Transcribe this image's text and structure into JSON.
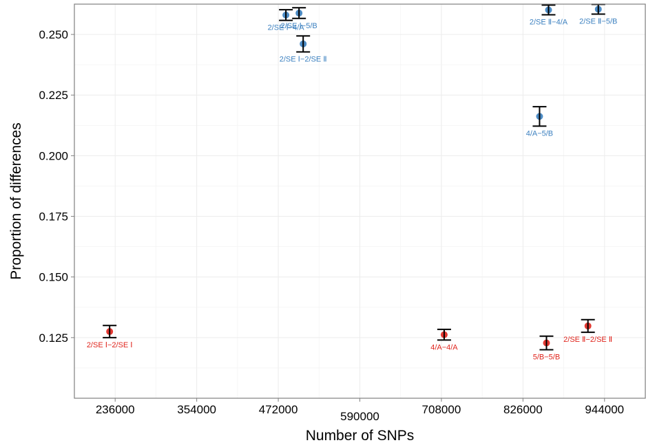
{
  "chart_data": {
    "type": "scatter",
    "xlabel": "Number of SNPs",
    "ylabel": "Proportion of differences",
    "xlim": [
      177000,
      1003000
    ],
    "ylim": [
      0.1,
      0.2625
    ],
    "x_ticks": [
      236000,
      354000,
      472000,
      590000,
      708000,
      826000,
      944000
    ],
    "x_tick_labels": [
      "236000",
      "354000",
      "472000",
      "590000",
      "708000",
      "826000",
      "944000"
    ],
    "y_ticks": [
      0.125,
      0.15,
      0.175,
      0.2,
      0.225,
      0.25
    ],
    "y_tick_labels": [
      "0.125",
      "0.150",
      "0.175",
      "0.200",
      "0.225",
      "0.250"
    ],
    "grid": true,
    "legend": "none",
    "colors": {
      "blue": "#3a7fbf",
      "red": "#e0241c",
      "errorbar": "#000000",
      "panel_border": "#7f7f7f",
      "grid": "#ececec"
    },
    "series": [
      {
        "color": "blue",
        "points": [
          {
            "x": 483000,
            "y": 0.258,
            "lo": 0.2558,
            "hi": 0.2602,
            "label": "2/SE Ⅰ−4/A"
          },
          {
            "x": 502000,
            "y": 0.2588,
            "lo": 0.2566,
            "hi": 0.261,
            "label": "2/SE Ⅰ−5/B"
          },
          {
            "x": 508000,
            "y": 0.2461,
            "lo": 0.2428,
            "hi": 0.2494,
            "label": "2/SE Ⅰ−2/SE Ⅱ"
          },
          {
            "x": 850000,
            "y": 0.2162,
            "lo": 0.2122,
            "hi": 0.2202,
            "label": "4/A−5/B"
          },
          {
            "x": 863000,
            "y": 0.2601,
            "lo": 0.2581,
            "hi": 0.2621,
            "label": "2/SE Ⅱ−4/A"
          },
          {
            "x": 935000,
            "y": 0.2604,
            "lo": 0.2584,
            "hi": 0.2624,
            "label": "2/SE Ⅱ−5/B"
          }
        ]
      },
      {
        "color": "red",
        "points": [
          {
            "x": 228000,
            "y": 0.1275,
            "lo": 0.125,
            "hi": 0.13,
            "label": "2/SE Ⅰ−2/SE Ⅰ"
          },
          {
            "x": 712000,
            "y": 0.1262,
            "lo": 0.124,
            "hi": 0.1284,
            "label": "4/A−4/A"
          },
          {
            "x": 860000,
            "y": 0.1228,
            "lo": 0.12,
            "hi": 0.1256,
            "label": "5/B−5/B"
          },
          {
            "x": 920000,
            "y": 0.1298,
            "lo": 0.1272,
            "hi": 0.1324,
            "label": "2/SE Ⅱ−2/SE Ⅱ"
          }
        ]
      }
    ]
  }
}
